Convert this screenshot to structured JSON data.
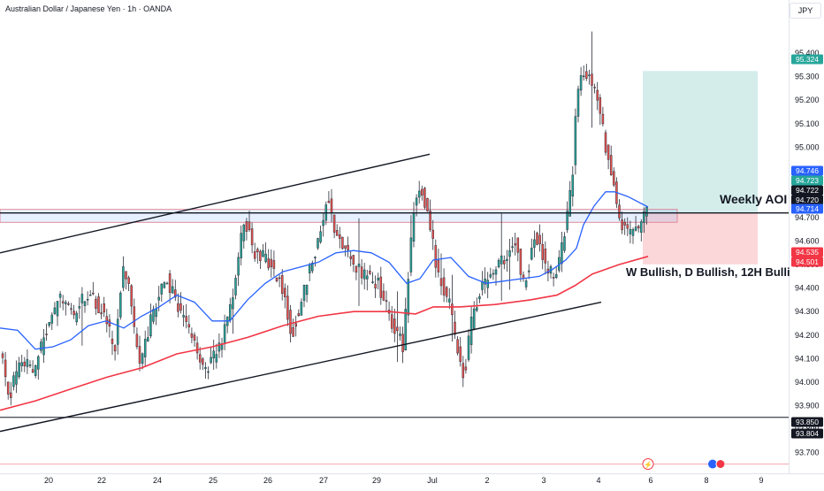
{
  "header": {
    "symbol_title": "Australian Dollar / Japanese Yen · 1h · OANDA",
    "currency": "JPY"
  },
  "chart_data": {
    "type": "candlestick",
    "x_labels": [
      "20",
      "22",
      "24",
      "25",
      "26",
      "27",
      "29",
      "Jul",
      "2",
      "3",
      "4",
      "6",
      "8",
      "9"
    ],
    "y_ticks": [
      95.4,
      95.3,
      95.2,
      95.1,
      95.0,
      94.9,
      94.8,
      94.7,
      94.6,
      94.5,
      94.4,
      94.3,
      94.2,
      94.1,
      94.0,
      93.9,
      93.8,
      93.7
    ],
    "ylim": [
      93.67,
      95.455
    ],
    "price_badges": [
      {
        "value": "95.324",
        "color": "#26a69a"
      },
      {
        "value": "94.746",
        "color": "#2962ff"
      },
      {
        "value": "94.723",
        "color": "#26a69a"
      },
      {
        "value": "94.722",
        "color": "#131722"
      },
      {
        "value": "94.720",
        "color": "#131722"
      },
      {
        "value": "94.714",
        "color": "#2962ff"
      },
      {
        "value": "94.535",
        "color": "#f23645"
      },
      {
        "value": "94.501",
        "color": "#f23645"
      },
      {
        "value": "93.850",
        "color": "#131722"
      },
      {
        "value": "93.804",
        "color": "#131722"
      }
    ],
    "annotations": {
      "weekly_aoi": "Weekly AOI",
      "bias": "W Bullish, D Bullish, 12H Bulli"
    },
    "aoi_zone": [
      94.68,
      94.735
    ],
    "aoi_line": 94.72,
    "support_line": 93.85,
    "position": {
      "target": 95.324,
      "entry": 94.72,
      "stop": 94.501
    },
    "channel_upper": [
      [
        0,
        94.55
      ],
      [
        486,
        94.97
      ]
    ],
    "channel_lower": [
      [
        0,
        93.79
      ],
      [
        680,
        94.34
      ]
    ],
    "ema_blue": [
      [
        0,
        94.23
      ],
      [
        20,
        94.22
      ],
      [
        40,
        94.14
      ],
      [
        60,
        94.15
      ],
      [
        80,
        94.18
      ],
      [
        100,
        94.24
      ],
      [
        120,
        94.26
      ],
      [
        140,
        94.23
      ],
      [
        160,
        94.28
      ],
      [
        180,
        94.32
      ],
      [
        200,
        94.37
      ],
      [
        220,
        94.34
      ],
      [
        240,
        94.26
      ],
      [
        260,
        94.26
      ],
      [
        280,
        94.35
      ],
      [
        300,
        94.42
      ],
      [
        320,
        94.47
      ],
      [
        340,
        94.49
      ],
      [
        360,
        94.51
      ],
      [
        380,
        94.55
      ],
      [
        400,
        94.56
      ],
      [
        420,
        94.55
      ],
      [
        440,
        94.51
      ],
      [
        460,
        94.42
      ],
      [
        475,
        94.44
      ],
      [
        490,
        94.52
      ],
      [
        510,
        94.53
      ],
      [
        530,
        94.45
      ],
      [
        550,
        94.42
      ],
      [
        570,
        94.43
      ],
      [
        590,
        94.44
      ],
      [
        610,
        94.45
      ],
      [
        625,
        94.48
      ],
      [
        640,
        94.52
      ],
      [
        652,
        94.57
      ],
      [
        660,
        94.67
      ],
      [
        672,
        94.75
      ],
      [
        685,
        94.81
      ],
      [
        695,
        94.81
      ],
      [
        710,
        94.79
      ],
      [
        733,
        94.745
      ]
    ],
    "ema_red": [
      [
        0,
        93.88
      ],
      [
        40,
        93.92
      ],
      [
        80,
        93.97
      ],
      [
        120,
        94.02
      ],
      [
        160,
        94.06
      ],
      [
        200,
        94.12
      ],
      [
        240,
        94.15
      ],
      [
        280,
        94.19
      ],
      [
        320,
        94.24
      ],
      [
        360,
        94.28
      ],
      [
        400,
        94.3
      ],
      [
        440,
        94.3
      ],
      [
        470,
        94.29
      ],
      [
        490,
        94.32
      ],
      [
        520,
        94.32
      ],
      [
        560,
        94.33
      ],
      [
        600,
        94.35
      ],
      [
        630,
        94.37
      ],
      [
        650,
        94.41
      ],
      [
        670,
        94.46
      ],
      [
        700,
        94.5
      ],
      [
        733,
        94.535
      ]
    ],
    "bottom_markers": [
      "lightning-marker",
      "event-marker"
    ]
  }
}
